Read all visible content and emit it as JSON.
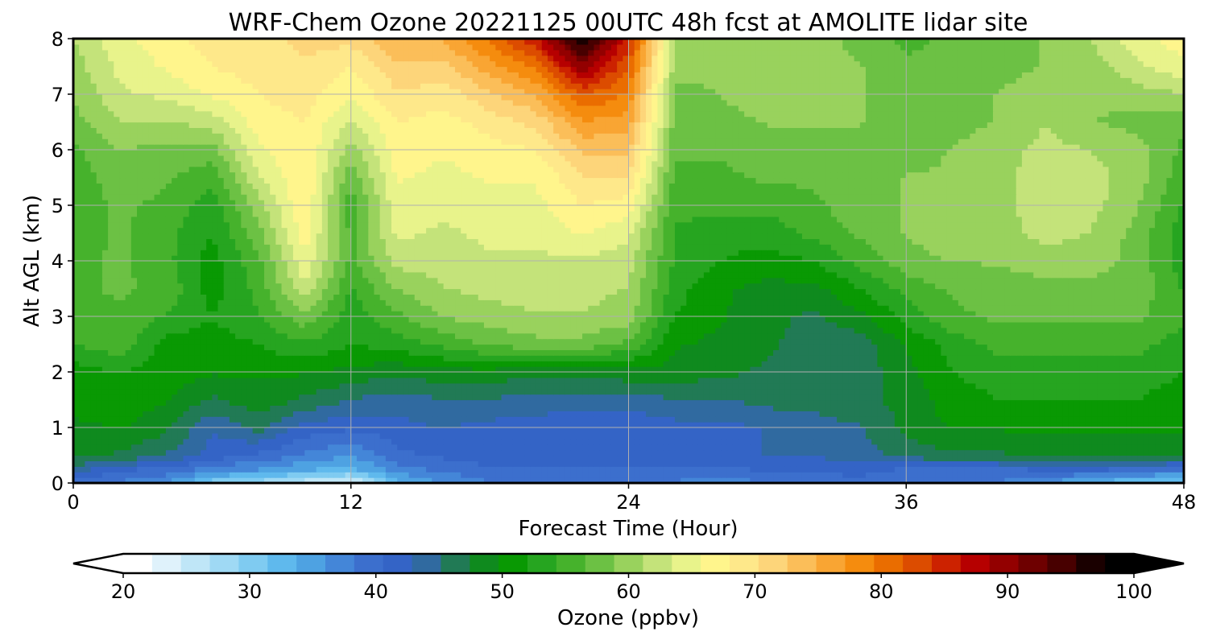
{
  "chart_data": {
    "type": "heatmap",
    "title": "WRF-Chem Ozone  20221125 00UTC 48h fcst at AMOLITE lidar site",
    "xlabel": "Forecast Time (Hour)",
    "ylabel": "Alt AGL (km)",
    "xlim": [
      0,
      48
    ],
    "ylim": [
      0,
      8
    ],
    "xticks": [
      0,
      12,
      24,
      36,
      48
    ],
    "yticks": [
      0,
      1,
      2,
      3,
      4,
      5,
      6,
      7,
      8
    ],
    "grid": true,
    "colorbar": {
      "label": "Ozone  (ppbv)",
      "min": 20,
      "max": 100,
      "ticks": [
        20,
        30,
        40,
        50,
        60,
        70,
        80,
        90,
        100
      ],
      "extend": "both",
      "orientation": "horizontal",
      "placement": "bottom",
      "colors": [
        "#ffffff",
        "#dff2fb",
        "#bfe6f7",
        "#9fd9f4",
        "#7fcbf1",
        "#5fb9ed",
        "#4ea2e2",
        "#4486d8",
        "#3c6fcd",
        "#3464c6",
        "#306aa0",
        "#217a55",
        "#0f8a1e",
        "#099903",
        "#26a520",
        "#46b22c",
        "#6cc144",
        "#99d25d",
        "#c4e37a",
        "#e8f38b",
        "#fff58c",
        "#fee88a",
        "#fdd57a",
        "#fbbe59",
        "#f9a533",
        "#f58c0e",
        "#ea6d00",
        "#dc4c00",
        "#cc2200",
        "#b60000",
        "#930000",
        "#6e0000",
        "#480000",
        "#1a0000",
        "#000000"
      ]
    },
    "x_hours": [
      0,
      2,
      4,
      6,
      8,
      10,
      12,
      14,
      16,
      18,
      20,
      22,
      24,
      26,
      28,
      30,
      32,
      34,
      36,
      38,
      40,
      42,
      44,
      46,
      48
    ],
    "z_km": [
      0,
      0.25,
      0.5,
      1,
      1.5,
      2,
      2.5,
      3,
      3.5,
      4,
      4.5,
      5,
      5.5,
      6,
      6.5,
      7,
      7.5,
      8
    ],
    "ozone_ppbv": [
      [
        38,
        38,
        36,
        30,
        28,
        25,
        23,
        33,
        36,
        38,
        38,
        38,
        38,
        38,
        37,
        38,
        39,
        39,
        38,
        38,
        38,
        36,
        33,
        31,
        30
      ],
      [
        44,
        41,
        40,
        37,
        36,
        34,
        33,
        37,
        39,
        40,
        40,
        40,
        40,
        40,
        40,
        41,
        41,
        42,
        40,
        40,
        40,
        41,
        41,
        40,
        39
      ],
      [
        48,
        47,
        45,
        42,
        40,
        38,
        36,
        40,
        41,
        42,
        42,
        42,
        42,
        42,
        42,
        43,
        43,
        44,
        46,
        47,
        47,
        48,
        48,
        48,
        48
      ],
      [
        49,
        50,
        48,
        43,
        46,
        42,
        41,
        42,
        43,
        42,
        42,
        41,
        41,
        42,
        42,
        43,
        44,
        45,
        48,
        50,
        50,
        50,
        50,
        50,
        50
      ],
      [
        51,
        51,
        50,
        47,
        49,
        47,
        45,
        44,
        45,
        45,
        44,
        44,
        44,
        45,
        45,
        46,
        46,
        47,
        48,
        51,
        52,
        52,
        52,
        52,
        51
      ],
      [
        51,
        52,
        51,
        50,
        50,
        50,
        49,
        48,
        49,
        49,
        48,
        48,
        49,
        49,
        48,
        47,
        46,
        46,
        49,
        52,
        53,
        53,
        53,
        53,
        52
      ],
      [
        54,
        56,
        51,
        51,
        52,
        54,
        52,
        53,
        55,
        57,
        58,
        58,
        56,
        50,
        49,
        48,
        46,
        46,
        50,
        53,
        55,
        55,
        55,
        55,
        53
      ],
      [
        56,
        56,
        54,
        52,
        54,
        58,
        53,
        56,
        59,
        60,
        61,
        61,
        60,
        52,
        50,
        48,
        47,
        49,
        53,
        56,
        57,
        57,
        57,
        57,
        55
      ],
      [
        56,
        57,
        56,
        51,
        55,
        63,
        54,
        59,
        61,
        62,
        62,
        62,
        61,
        53,
        50,
        49,
        49,
        52,
        55,
        57,
        58,
        58,
        58,
        58,
        54
      ],
      [
        56,
        57,
        55,
        51,
        56,
        65,
        56,
        62,
        62,
        63,
        63,
        63,
        62,
        54,
        52,
        51,
        52,
        55,
        58,
        59,
        59,
        60,
        60,
        58,
        53
      ],
      [
        55,
        57,
        55,
        52,
        58,
        67,
        56,
        64,
        63,
        64,
        64,
        66,
        64,
        54,
        53,
        53,
        55,
        57,
        59,
        60,
        60,
        62,
        61,
        58,
        53
      ],
      [
        55,
        57,
        56,
        53,
        60,
        68,
        55,
        65,
        64,
        65,
        65,
        68,
        67,
        55,
        55,
        55,
        56,
        58,
        59,
        60,
        60,
        63,
        62,
        59,
        54
      ],
      [
        55,
        58,
        57,
        55,
        63,
        68,
        57,
        66,
        65,
        66,
        66,
        70,
        70,
        56,
        56,
        57,
        57,
        58,
        59,
        59,
        60,
        63,
        62,
        60,
        55
      ],
      [
        56,
        59,
        58,
        58,
        65,
        68,
        60,
        67,
        66,
        67,
        68,
        73,
        73,
        57,
        57,
        58,
        58,
        58,
        58,
        59,
        60,
        62,
        61,
        60,
        56
      ],
      [
        58,
        61,
        61,
        62,
        67,
        68,
        63,
        68,
        67,
        69,
        71,
        77,
        76,
        58,
        58,
        59,
        59,
        59,
        58,
        58,
        59,
        61,
        59,
        58,
        57
      ],
      [
        59,
        63,
        64,
        66,
        68,
        69,
        66,
        70,
        69,
        72,
        75,
        82,
        79,
        58,
        59,
        60,
        59,
        59,
        58,
        58,
        59,
        60,
        59,
        60,
        61
      ],
      [
        60,
        64,
        66,
        68,
        69,
        70,
        68,
        72,
        72,
        76,
        80,
        90,
        82,
        60,
        59,
        60,
        60,
        59,
        57,
        57,
        58,
        59,
        60,
        63,
        65
      ],
      [
        61,
        65,
        67,
        69,
        69,
        71,
        71,
        75,
        75,
        80,
        86,
        98,
        85,
        61,
        59,
        60,
        60,
        58,
        56,
        57,
        58,
        59,
        61,
        65,
        67
      ]
    ]
  }
}
